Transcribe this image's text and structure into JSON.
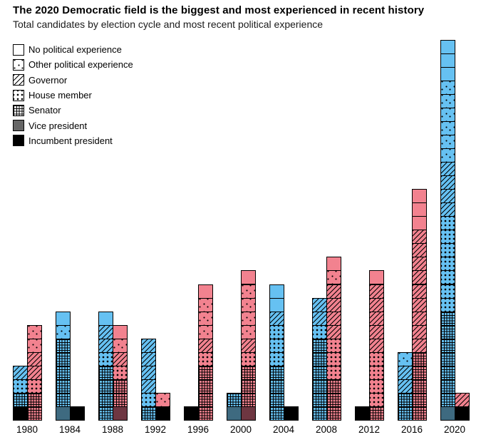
{
  "title": "The 2020 Democratic field is the biggest and most experienced in recent history",
  "subtitle": "Total candidates by election cycle and most recent political experience",
  "legend": [
    {
      "label": "No political experience",
      "pattern": "none"
    },
    {
      "label": "Other political experience",
      "pattern": "other"
    },
    {
      "label": "Governor",
      "pattern": "governor"
    },
    {
      "label": "House member",
      "pattern": "house"
    },
    {
      "label": "Senator",
      "pattern": "senator"
    },
    {
      "label": "Vice president",
      "pattern": "vp"
    },
    {
      "label": "Incumbent president",
      "pattern": "president"
    }
  ],
  "colors": {
    "democratic": "#66c1f2",
    "republican": "#f2828f",
    "democratic_vice_president": "#3e6a80",
    "republican_vice_president": "#6e3641",
    "incumbent_president": "#000000",
    "legend_vice_president_swatch": "#666666"
  },
  "chart_data": {
    "type": "bar",
    "variant": "stacked-unit-squares, one square = one candidate, paired bars per cycle (Democratic left/blue, Republican right/pink)",
    "title": "The 2020 Democratic field is the biggest and most experienced in recent history",
    "subtitle": "Total candidates by election cycle and most recent political experience",
    "xlabel": "",
    "ylabel": "",
    "grid": false,
    "legend_position": "top-left",
    "categories": [
      "1980",
      "1984",
      "1988",
      "1992",
      "1996",
      "2000",
      "2004",
      "2008",
      "2012",
      "2016",
      "2020"
    ],
    "stack_order_bottom_to_top": [
      "president",
      "vp",
      "senator",
      "house",
      "governor",
      "other",
      "none"
    ],
    "experience_labels": {
      "none": "No political experience",
      "other": "Other political experience",
      "governor": "Governor",
      "house": "House member",
      "senator": "Senator",
      "vp": "Vice president",
      "president": "Incumbent president"
    },
    "series": [
      {
        "name": "Democratic",
        "totals": [
          4,
          8,
          8,
          6,
          1,
          2,
          10,
          9,
          1,
          5,
          28
        ]
      },
      {
        "name": "Republican",
        "totals": [
          7,
          1,
          7,
          2,
          10,
          11,
          1,
          12,
          11,
          17,
          2
        ]
      }
    ],
    "bars": [
      {
        "year": "1980",
        "dem": {
          "president": 1,
          "senator": 1,
          "house": 1,
          "governor": 1
        },
        "rep": {
          "senator": 2,
          "house": 1,
          "governor": 2,
          "other": 2
        }
      },
      {
        "year": "1984",
        "dem": {
          "vp": 1,
          "senator": 5,
          "other": 1,
          "none": 1
        },
        "rep": {
          "president": 1
        }
      },
      {
        "year": "1988",
        "dem": {
          "senator": 4,
          "house": 1,
          "governor": 2,
          "none": 1
        },
        "rep": {
          "vp": 1,
          "senator": 2,
          "house": 1,
          "governor": 1,
          "other": 1,
          "none": 1
        }
      },
      {
        "year": "1992",
        "dem": {
          "senator": 1,
          "house": 1,
          "governor": 4
        },
        "rep": {
          "president": 1,
          "other": 1
        }
      },
      {
        "year": "1996",
        "dem": {
          "president": 1
        },
        "rep": {
          "senator": 4,
          "house": 1,
          "governor": 1,
          "other": 3,
          "none": 1
        }
      },
      {
        "year": "2000",
        "dem": {
          "vp": 1,
          "senator": 1
        },
        "rep": {
          "vp": 1,
          "senator": 3,
          "house": 1,
          "governor": 1,
          "other": 4,
          "none": 1
        }
      },
      {
        "year": "2004",
        "dem": {
          "senator": 4,
          "house": 3,
          "governor": 1,
          "none": 2
        },
        "rep": {
          "president": 1
        }
      },
      {
        "year": "2008",
        "dem": {
          "senator": 6,
          "house": 1,
          "governor": 2
        },
        "rep": {
          "senator": 3,
          "house": 3,
          "governor": 4,
          "other": 1,
          "none": 1
        }
      },
      {
        "year": "2012",
        "dem": {
          "president": 1
        },
        "rep": {
          "senator": 1,
          "house": 4,
          "governor": 5,
          "none": 1
        }
      },
      {
        "year": "2016",
        "dem": {
          "senator": 2,
          "governor": 2,
          "other": 1
        },
        "rep": {
          "senator": 5,
          "governor": 9,
          "none": 3
        }
      },
      {
        "year": "2020",
        "dem": {
          "vp": 1,
          "senator": 7,
          "house": 7,
          "governor": 4,
          "other": 6,
          "none": 3
        },
        "rep": {
          "president": 1,
          "governor": 1
        }
      }
    ]
  }
}
